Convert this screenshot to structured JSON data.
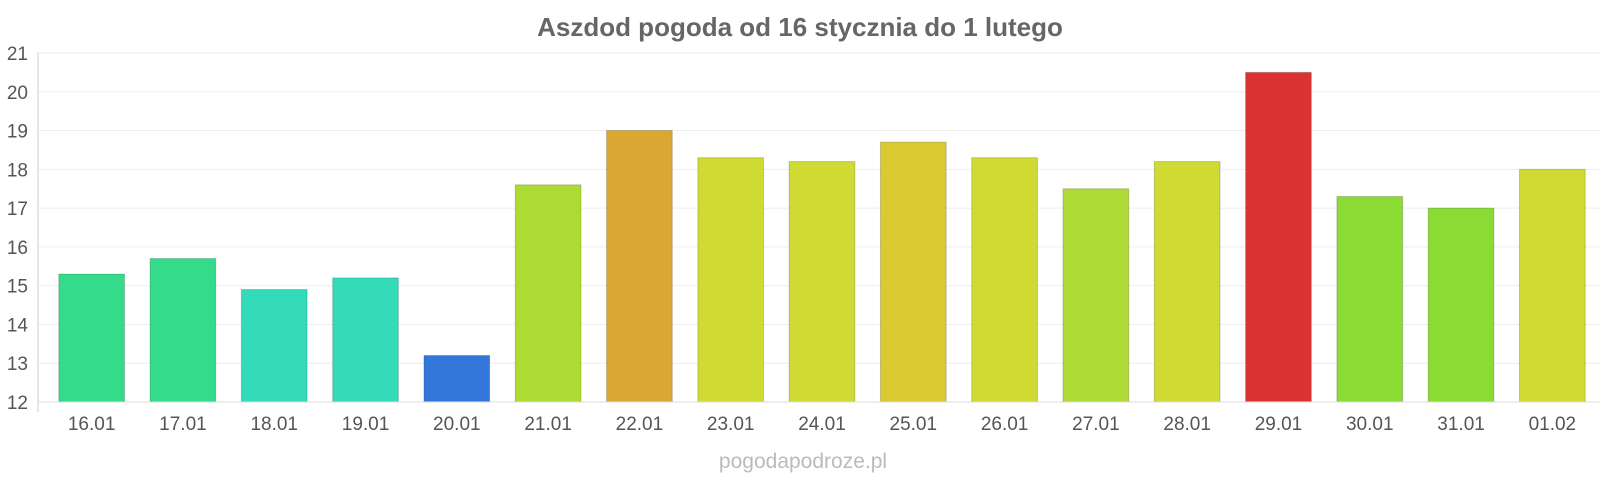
{
  "chart_data": {
    "type": "bar",
    "title": "Aszdod pogoda od 16 stycznia do 1 lutego",
    "categories": [
      "16.01",
      "17.01",
      "18.01",
      "19.01",
      "20.01",
      "21.01",
      "22.01",
      "23.01",
      "24.01",
      "25.01",
      "26.01",
      "27.01",
      "28.01",
      "29.01",
      "30.01",
      "31.01",
      "01.02"
    ],
    "values": [
      15.3,
      15.7,
      14.9,
      15.2,
      13.2,
      17.6,
      19.0,
      18.3,
      18.2,
      18.7,
      18.3,
      17.5,
      18.2,
      20.5,
      17.3,
      17.0,
      18.0
    ],
    "colors": [
      "#33db8a",
      "#33db8a",
      "#33dbb9",
      "#33dbb9",
      "#3377db",
      "#addb33",
      "#dba733",
      "#cfdb33",
      "#cfdb33",
      "#dbc933",
      "#cfdb33",
      "#addb33",
      "#cfdb33",
      "#db3333",
      "#8adb33",
      "#8adb33",
      "#cfdb33"
    ],
    "yticks": [
      12,
      13,
      14,
      15,
      16,
      17,
      18,
      19,
      20,
      21
    ],
    "ylim": [
      12,
      21
    ],
    "xlabel": "",
    "ylabel": "",
    "grid": true,
    "legend": "none"
  },
  "watermark": "pogodapodroze.pl"
}
